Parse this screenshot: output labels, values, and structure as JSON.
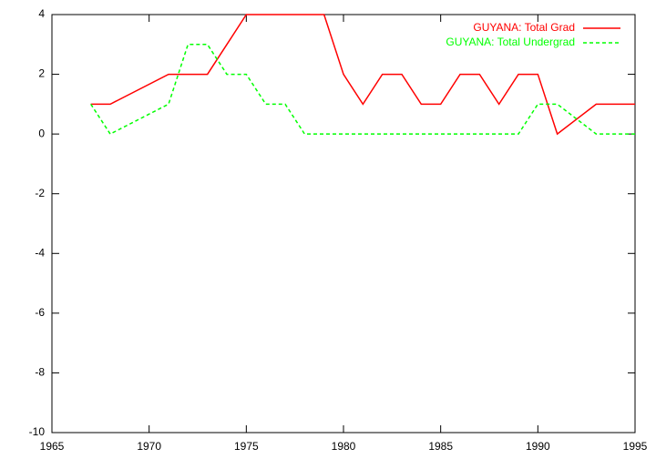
{
  "chart_data": {
    "type": "line",
    "x": [
      1967,
      1968,
      1971,
      1972,
      1973,
      1974,
      1975,
      1976,
      1977,
      1978,
      1979,
      1980,
      1981,
      1982,
      1983,
      1984,
      1985,
      1986,
      1987,
      1988,
      1989,
      1990,
      1991,
      1993,
      1994,
      1995
    ],
    "series": [
      {
        "name": "GUYANA: Total Grad",
        "color": "#ff0000",
        "dash": false,
        "values": [
          1,
          1,
          2,
          2,
          2,
          3,
          4,
          4,
          4,
          4,
          4,
          2,
          1,
          2,
          2,
          1,
          1,
          2,
          2,
          1,
          2,
          2,
          0,
          1,
          1,
          1
        ]
      },
      {
        "name": "GUYANA: Total Undergrad",
        "color": "#00ff00",
        "dash": true,
        "values": [
          1,
          0,
          1,
          3,
          3,
          2,
          2,
          1,
          1,
          0,
          0,
          0,
          0,
          0,
          0,
          0,
          0,
          0,
          0,
          0,
          0,
          1,
          1,
          0,
          0,
          0
        ]
      }
    ],
    "xlim": [
      1965,
      1995
    ],
    "xticks": [
      1965,
      1970,
      1975,
      1980,
      1985,
      1990,
      1995
    ],
    "ylim": [
      -10,
      4
    ],
    "yticks": [
      -10,
      -8,
      -6,
      -4,
      -2,
      0,
      2,
      4
    ],
    "legend": "top-right"
  }
}
